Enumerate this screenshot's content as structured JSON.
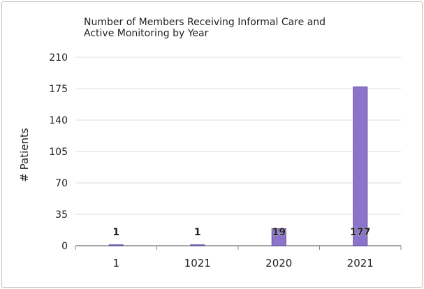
{
  "chart_data": {
    "type": "bar",
    "title": "Number of Members Receiving Informal Care and Active Monitoring by Year",
    "xlabel": "",
    "ylabel": "# Patients",
    "categories": [
      "1",
      "1021",
      "2020",
      "2021"
    ],
    "values": [
      1,
      1,
      19,
      177
    ],
    "data_labels": [
      "1",
      "1",
      "19",
      "177"
    ],
    "ylim": [
      0,
      210
    ],
    "yticks": [
      0,
      35,
      70,
      105,
      140,
      175,
      210
    ],
    "grid": true,
    "legend": "none",
    "colors": {
      "bar": "#8b74c9",
      "bar_edge": "#5f4a9e",
      "grid": "#dddddd",
      "axis": "#888888"
    }
  }
}
